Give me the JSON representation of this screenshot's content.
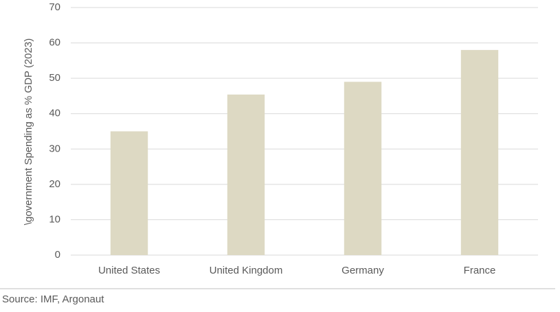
{
  "chart_data": {
    "type": "bar",
    "y_axis_label": "\\government Spending as % GDP (2023)",
    "categories": [
      "United States",
      "United Kingdom",
      "Germany",
      "France"
    ],
    "values": [
      35,
      45.4,
      49,
      58
    ],
    "color": "#ddd9c3",
    "ylim": [
      0,
      70
    ],
    "yticks": [
      0,
      10,
      20,
      30,
      40,
      50,
      60,
      70
    ],
    "grid": true,
    "source": "Source: IMF, Argonaut"
  }
}
